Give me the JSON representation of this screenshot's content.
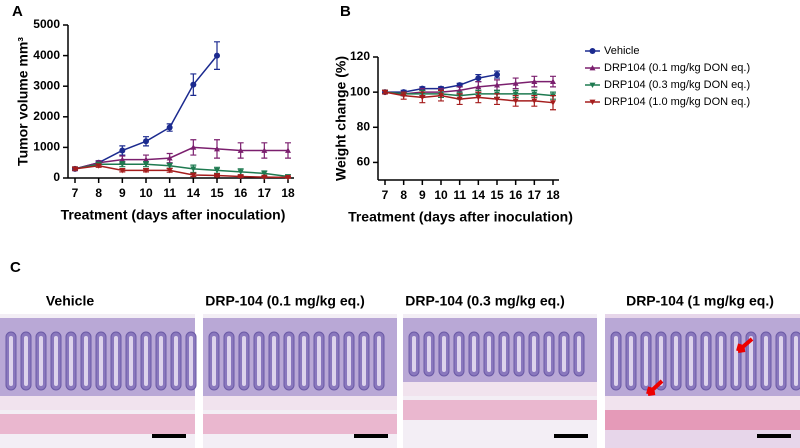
{
  "chart_data": [
    {
      "type": "line",
      "panel_label": "A",
      "y_label": "Tumor volume mm³",
      "x_label": "Treatment (days after inoculation)",
      "categories": [
        "7",
        "8",
        "9",
        "10",
        "11",
        "14",
        "15",
        "16",
        "17",
        "18"
      ],
      "ylim": [
        0,
        5000
      ],
      "yticks": [
        0,
        1000,
        2000,
        3000,
        4000,
        5000
      ],
      "series": [
        {
          "color": "#1b2a8f",
          "marker": "circle",
          "values": [
            300,
            500,
            900,
            1200,
            1650,
            3050,
            4000,
            null,
            null,
            null
          ],
          "errors": [
            50,
            60,
            150,
            150,
            120,
            350,
            450,
            null,
            null,
            null
          ]
        },
        {
          "color": "#7b1f6e",
          "marker": "triangle-up",
          "values": [
            300,
            500,
            600,
            600,
            650,
            1000,
            950,
            900,
            900,
            900
          ],
          "errors": [
            50,
            60,
            120,
            150,
            150,
            250,
            300,
            250,
            250,
            250
          ]
        },
        {
          "color": "#1e7a50",
          "marker": "triangle-down",
          "values": [
            300,
            450,
            450,
            450,
            400,
            300,
            250,
            200,
            150,
            50
          ],
          "errors": [
            40,
            60,
            80,
            80,
            80,
            120,
            100,
            100,
            80,
            50
          ]
        },
        {
          "color": "#a51d1d",
          "marker": "triangle-down",
          "values": [
            300,
            400,
            250,
            250,
            250,
            100,
            80,
            50,
            30,
            20
          ],
          "errors": [
            40,
            50,
            50,
            50,
            60,
            50,
            40,
            30,
            20,
            20
          ]
        }
      ]
    },
    {
      "type": "line",
      "panel_label": "B",
      "y_label": "Weight change (%)",
      "x_label": "Treatment (days after inoculation)",
      "categories": [
        "7",
        "8",
        "9",
        "10",
        "11",
        "14",
        "15",
        "16",
        "17",
        "18"
      ],
      "ylim": [
        50,
        120
      ],
      "yticks": [
        60,
        80,
        100,
        120
      ],
      "series": [
        {
          "name": "Vehicle",
          "color": "#1b2a8f",
          "marker": "circle",
          "values": [
            100,
            100,
            102,
            102,
            104,
            108,
            110,
            null,
            null,
            null
          ],
          "errors": [
            1,
            1,
            1,
            1,
            1,
            2,
            2,
            null,
            null,
            null
          ]
        },
        {
          "name": "DRP104 (0.1 mg/kg DON eq.)",
          "color": "#7b1f6e",
          "marker": "triangle-up",
          "values": [
            100,
            99,
            100,
            100,
            101,
            103,
            104,
            105,
            106,
            106
          ],
          "errors": [
            1,
            1,
            2,
            2,
            2,
            3,
            3,
            3,
            3,
            3
          ]
        },
        {
          "name": "DRP104 (0.3 mg/kg DON eq.)",
          "color": "#1e7a50",
          "marker": "triangle-down",
          "values": [
            100,
            99,
            99,
            99,
            98,
            99,
            99,
            99,
            99,
            98
          ],
          "errors": [
            1,
            1,
            2,
            2,
            2,
            2,
            2,
            2,
            2,
            2
          ]
        },
        {
          "name": "DRP104 (1.0 mg/kg DON eq.)",
          "color": "#a51d1d",
          "marker": "triangle-down",
          "values": [
            100,
            98,
            97,
            98,
            96,
            97,
            96,
            95,
            95,
            94
          ],
          "errors": [
            1,
            2,
            3,
            3,
            3,
            3,
            3,
            3,
            3,
            4
          ]
        }
      ]
    }
  ],
  "panel_c": {
    "label": "C",
    "images": [
      {
        "title": "Vehicle"
      },
      {
        "title": "DRP-104 (0.1 mg/kg eq.)"
      },
      {
        "title": "DRP-104 (0.3 mg/kg eq.)"
      },
      {
        "title": "DRP-104 (1 mg/kg  eq.)"
      }
    ]
  }
}
